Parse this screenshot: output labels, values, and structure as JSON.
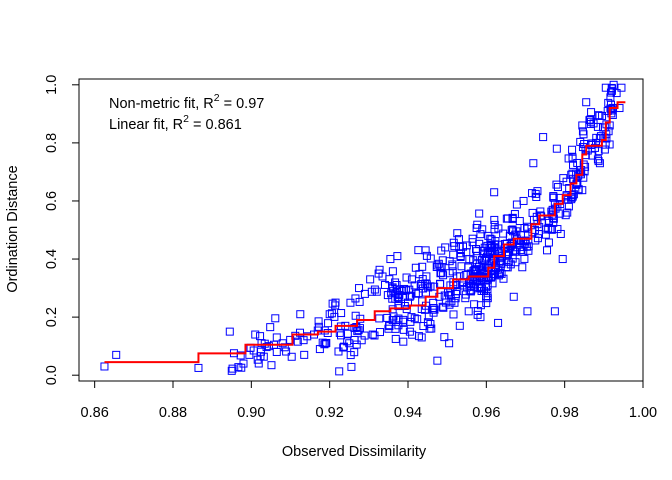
{
  "chart_data": {
    "type": "scatter",
    "title": "",
    "xlabel": "Observed Dissimilarity",
    "ylabel": "Ordination Distance",
    "xlim": [
      0.856,
      1.0
    ],
    "ylim": [
      -0.02,
      1.02
    ],
    "x_ticks": [
      "0.86",
      "0.88",
      "0.90",
      "0.92",
      "0.94",
      "0.96",
      "0.98",
      "1.00"
    ],
    "y_ticks": [
      "0.0",
      "0.2",
      "0.4",
      "0.6",
      "0.8",
      "1.0"
    ],
    "legend": {
      "placement": "top-left",
      "lines": [
        {
          "text": "Non-metric fit, R",
          "sup": "2",
          "suffix": " = 0.97"
        },
        {
          "text": "Linear fit, R",
          "sup": "2",
          "suffix": " = 0.861"
        }
      ]
    },
    "stats": {
      "nonmetric_r2": 0.97,
      "linear_r2": 0.861
    },
    "colors": {
      "points": "#0000ff",
      "fit": "#ff0000"
    },
    "marker": "open-square",
    "points_generation": {
      "count": 540,
      "x_min": 0.862,
      "x_max": 0.995
    },
    "series": [
      {
        "role": "points",
        "shape": "open-square",
        "points": [
          [
            0.8625,
            0.03
          ],
          [
            0.8655,
            0.07
          ],
          [
            0.8865,
            0.025
          ],
          [
            0.8945,
            0.15
          ],
          [
            0.895,
            0.015
          ],
          [
            0.898,
            0.04
          ],
          [
            0.8995,
            0.07
          ],
          [
            0.901,
            0.14
          ],
          [
            0.9045,
            0.1
          ],
          [
            0.9065,
            0.13
          ],
          [
            0.908,
            0.11
          ],
          [
            0.9125,
            0.21
          ],
          [
            0.9135,
            0.07
          ],
          [
            0.916,
            0.14
          ],
          [
            0.9175,
            0.09
          ],
          [
            0.92,
            0.21
          ],
          [
            0.9215,
            0.25
          ],
          [
            0.924,
            0.17
          ],
          [
            0.925,
            0.11
          ],
          [
            0.9275,
            0.3
          ],
          [
            0.929,
            0.28
          ],
          [
            0.931,
            0.14
          ],
          [
            0.9325,
            0.35
          ],
          [
            0.9335,
            0.34
          ],
          [
            0.935,
            0.16
          ],
          [
            0.9355,
            0.4
          ],
          [
            0.937,
            0.19
          ],
          [
            0.9385,
            0.29
          ],
          [
            0.94,
            0.25
          ],
          [
            0.941,
            0.33
          ],
          [
            0.942,
            0.37
          ],
          [
            0.9435,
            0.13
          ],
          [
            0.9445,
            0.43
          ],
          [
            0.9455,
            0.16
          ],
          [
            0.9475,
            0.05
          ],
          [
            0.948,
            0.27
          ],
          [
            0.9495,
            0.44
          ],
          [
            0.9505,
            0.11
          ],
          [
            0.9525,
            0.34
          ],
          [
            0.9535,
            0.42
          ],
          [
            0.9555,
            0.22
          ],
          [
            0.9565,
            0.47
          ],
          [
            0.9585,
            0.2
          ],
          [
            0.9595,
            0.35
          ],
          [
            0.961,
            0.47
          ],
          [
            0.962,
            0.63
          ],
          [
            0.963,
            0.18
          ],
          [
            0.964,
            0.41
          ],
          [
            0.9655,
            0.54
          ],
          [
            0.967,
            0.27
          ],
          [
            0.9685,
            0.45
          ],
          [
            0.9695,
            0.6
          ],
          [
            0.9705,
            0.22
          ],
          [
            0.972,
            0.73
          ],
          [
            0.9735,
            0.51
          ],
          [
            0.9745,
            0.82
          ],
          [
            0.9755,
            0.43
          ],
          [
            0.9775,
            0.22
          ],
          [
            0.978,
            0.78
          ],
          [
            0.9795,
            0.4
          ],
          [
            0.9805,
            0.62
          ],
          [
            0.982,
            0.75
          ],
          [
            0.983,
            0.66
          ],
          [
            0.9845,
            0.86
          ],
          [
            0.9855,
            0.94
          ],
          [
            0.9865,
            0.88
          ],
          [
            0.988,
            0.8
          ],
          [
            0.989,
            0.73
          ],
          [
            0.9905,
            0.99
          ],
          [
            0.9915,
            0.86
          ],
          [
            0.9925,
            1.0
          ],
          [
            0.994,
            0.92
          ],
          [
            0.9945,
            0.99
          ]
        ]
      },
      {
        "role": "fit",
        "name": "",
        "step_points": [
          [
            0.8625,
            0.045
          ],
          [
            0.8865,
            0.045
          ],
          [
            0.8865,
            0.075
          ],
          [
            0.8985,
            0.075
          ],
          [
            0.8985,
            0.105
          ],
          [
            0.9105,
            0.105
          ],
          [
            0.9105,
            0.14
          ],
          [
            0.917,
            0.14
          ],
          [
            0.917,
            0.15
          ],
          [
            0.9215,
            0.15
          ],
          [
            0.9215,
            0.17
          ],
          [
            0.927,
            0.17
          ],
          [
            0.927,
            0.19
          ],
          [
            0.9315,
            0.19
          ],
          [
            0.9315,
            0.22
          ],
          [
            0.9355,
            0.22
          ],
          [
            0.9355,
            0.23
          ],
          [
            0.9405,
            0.23
          ],
          [
            0.9405,
            0.24
          ],
          [
            0.9445,
            0.24
          ],
          [
            0.9445,
            0.27
          ],
          [
            0.9475,
            0.27
          ],
          [
            0.9475,
            0.3
          ],
          [
            0.9515,
            0.3
          ],
          [
            0.9515,
            0.33
          ],
          [
            0.9555,
            0.33
          ],
          [
            0.9555,
            0.34
          ],
          [
            0.9605,
            0.34
          ],
          [
            0.9605,
            0.37
          ],
          [
            0.962,
            0.37
          ],
          [
            0.962,
            0.41
          ],
          [
            0.9645,
            0.41
          ],
          [
            0.9645,
            0.45
          ],
          [
            0.967,
            0.45
          ],
          [
            0.967,
            0.47
          ],
          [
            0.9715,
            0.47
          ],
          [
            0.9715,
            0.52
          ],
          [
            0.9735,
            0.52
          ],
          [
            0.9735,
            0.55
          ],
          [
            0.9775,
            0.55
          ],
          [
            0.9775,
            0.59
          ],
          [
            0.9795,
            0.59
          ],
          [
            0.9795,
            0.62
          ],
          [
            0.9815,
            0.62
          ],
          [
            0.9815,
            0.66
          ],
          [
            0.983,
            0.66
          ],
          [
            0.983,
            0.69
          ],
          [
            0.9845,
            0.69
          ],
          [
            0.9845,
            0.76
          ],
          [
            0.9855,
            0.76
          ],
          [
            0.9855,
            0.79
          ],
          [
            0.9895,
            0.79
          ],
          [
            0.9895,
            0.81
          ],
          [
            0.9905,
            0.81
          ],
          [
            0.9905,
            0.87
          ],
          [
            0.9915,
            0.87
          ],
          [
            0.9915,
            0.92
          ],
          [
            0.9935,
            0.92
          ],
          [
            0.9935,
            0.94
          ],
          [
            0.9955,
            0.94
          ]
        ]
      }
    ]
  }
}
